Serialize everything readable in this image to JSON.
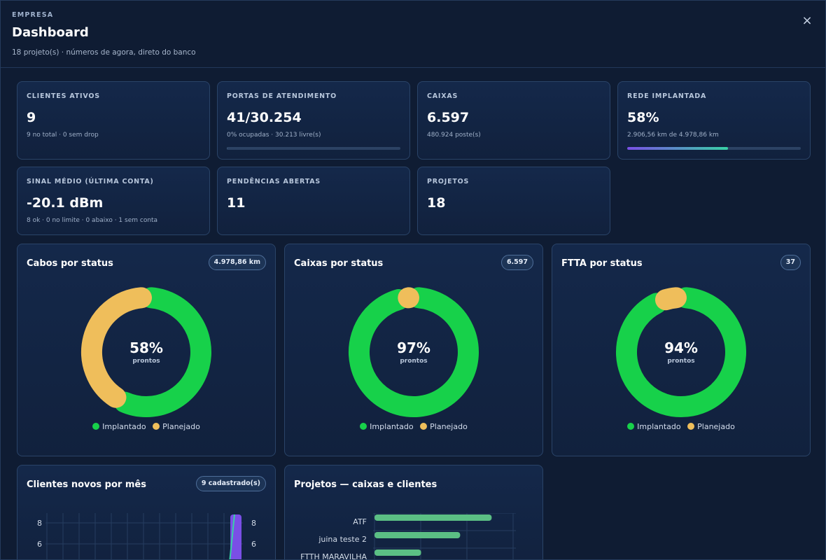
{
  "header": {
    "eyebrow": "EMPRESA",
    "title": "Dashboard",
    "subtitle": "18 projeto(s) · números de agora, direto do banco",
    "close_icon": "×"
  },
  "kpis": [
    {
      "label": "CLIENTES ATIVOS",
      "value": "9",
      "sub": "9 no total · 0 sem drop"
    },
    {
      "label": "PORTAS DE ATENDIMENTO",
      "value": "41/30.254",
      "sub": "0% ocupadas · 30.213 livre(s)",
      "progress": 0.0014,
      "bar_color": "#3a5478"
    },
    {
      "label": "CAIXAS",
      "value": "6.597",
      "sub": "480.924 poste(s)"
    },
    {
      "label": "REDE IMPLANTADA",
      "value": "58%",
      "sub": "2.906,56 km de 4.978,86 km",
      "progress": 0.58,
      "bar_color": "linear"
    },
    {
      "label": "SINAL MÉDIO (ÚLTIMA CONTA)",
      "value": "-20.1 dBm",
      "sub": "8 ok · 0 no limite · 0 abaixo · 1 sem conta"
    },
    {
      "label": "PENDÊNCIAS ABERTAS",
      "value": "11",
      "sub": ""
    },
    {
      "label": "PROJETOS",
      "value": "18",
      "sub": ""
    }
  ],
  "donuts": [
    {
      "title": "Cabos por status",
      "badge": "4.978,86 km",
      "percent": "58%",
      "percent_value": 0.58,
      "center_label": "prontos"
    },
    {
      "title": "Caixas por status",
      "badge": "6.597",
      "percent": "97%",
      "percent_value": 0.97,
      "center_label": "prontos"
    },
    {
      "title": "FTTA por status",
      "badge": "37",
      "percent": "94%",
      "percent_value": 0.94,
      "center_label": "prontos"
    }
  ],
  "legend": {
    "implantado": "Implantado",
    "planejado": "Planejado"
  },
  "colors": {
    "implantado": "#17d14a",
    "planejado": "#efbe5b",
    "accent_purple": "#7a4fe6",
    "accent_teal": "#38d1a6",
    "bar_green": "#5bbf84"
  },
  "clientes_chart": {
    "title": "Clientes novos por mês",
    "badge": "9 cadastrado(s)",
    "y_ticks_left": [
      "8",
      "6"
    ],
    "y_ticks_right": [
      "8",
      "6"
    ]
  },
  "projetos_chart": {
    "title": "Projetos — caixas e clientes",
    "rows": [
      {
        "label": "ATF",
        "value": 0.93
      },
      {
        "label": "juina teste 2",
        "value": 0.68
      },
      {
        "label": "FTTH MARAVILHA",
        "value": 0.37
      }
    ]
  }
}
